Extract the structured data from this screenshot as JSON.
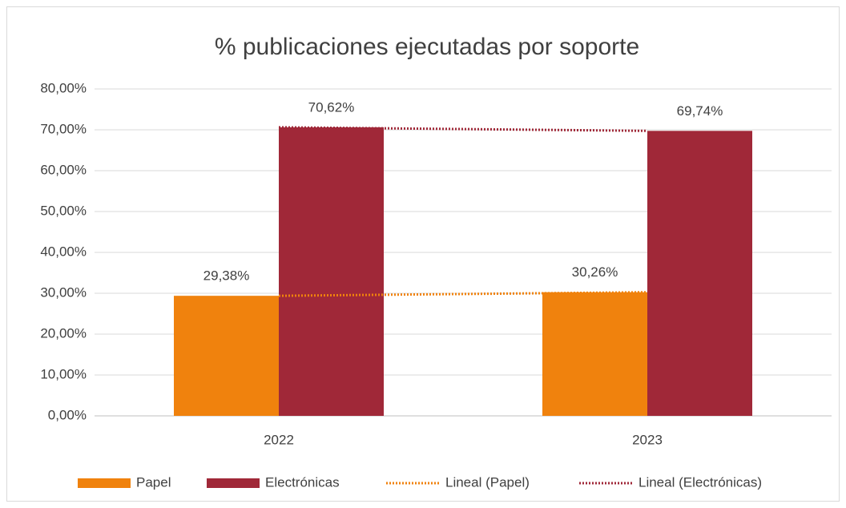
{
  "chart_data": {
    "type": "bar",
    "title": "% publicaciones ejecutadas por soporte",
    "categories": [
      "2022",
      "2023"
    ],
    "series": [
      {
        "name": "Papel",
        "color": "#f0820d",
        "values": [
          29.38,
          30.26
        ],
        "value_labels": [
          "29,38%",
          "30,26%"
        ]
      },
      {
        "name": "Electrónicas",
        "color": "#a02838",
        "values": [
          70.62,
          69.74
        ],
        "value_labels": [
          "70,62%",
          "69,74%"
        ]
      }
    ],
    "trendlines": [
      {
        "name": "Lineal (Papel)",
        "series": 0,
        "color": "#f0820d"
      },
      {
        "name": "Lineal (Electrónicas)",
        "series": 1,
        "color": "#a02838"
      }
    ],
    "ylim": [
      0,
      80
    ],
    "yticks": [
      {
        "value": 0,
        "label": "0,00%"
      },
      {
        "value": 10,
        "label": "10,00%"
      },
      {
        "value": 20,
        "label": "20,00%"
      },
      {
        "value": 30,
        "label": "30,00%"
      },
      {
        "value": 40,
        "label": "40,00%"
      },
      {
        "value": 50,
        "label": "50,00%"
      },
      {
        "value": 60,
        "label": "60,00%"
      },
      {
        "value": 70,
        "label": "70,00%"
      },
      {
        "value": 80,
        "label": "80,00%"
      }
    ],
    "grid": true,
    "legend": "bottom"
  }
}
